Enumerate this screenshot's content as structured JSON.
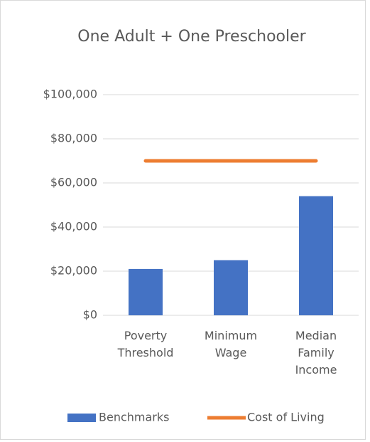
{
  "chart_data": {
    "type": "bar",
    "title": "One Adult + One Preschooler",
    "categories": [
      "Poverty Threshold",
      "Minimum Wage",
      "Median Family Income"
    ],
    "series": [
      {
        "name": "Benchmarks",
        "type": "bar",
        "color": "#4472c4",
        "values": [
          21000,
          25000,
          54000
        ]
      },
      {
        "name": "Cost of Living",
        "type": "line",
        "color": "#ed7d31",
        "values": [
          70000,
          70000,
          70000
        ]
      }
    ],
    "ylim": [
      0,
      100000
    ],
    "yticks": [
      {
        "value": 0,
        "label": "$0"
      },
      {
        "value": 20000,
        "label": "$20,000"
      },
      {
        "value": 40000,
        "label": "$40,000"
      },
      {
        "value": 60000,
        "label": "$60,000"
      },
      {
        "value": 80000,
        "label": "$80,000"
      },
      {
        "value": 100000,
        "label": "$100,000"
      }
    ],
    "grid": true,
    "legend": "bottom"
  }
}
